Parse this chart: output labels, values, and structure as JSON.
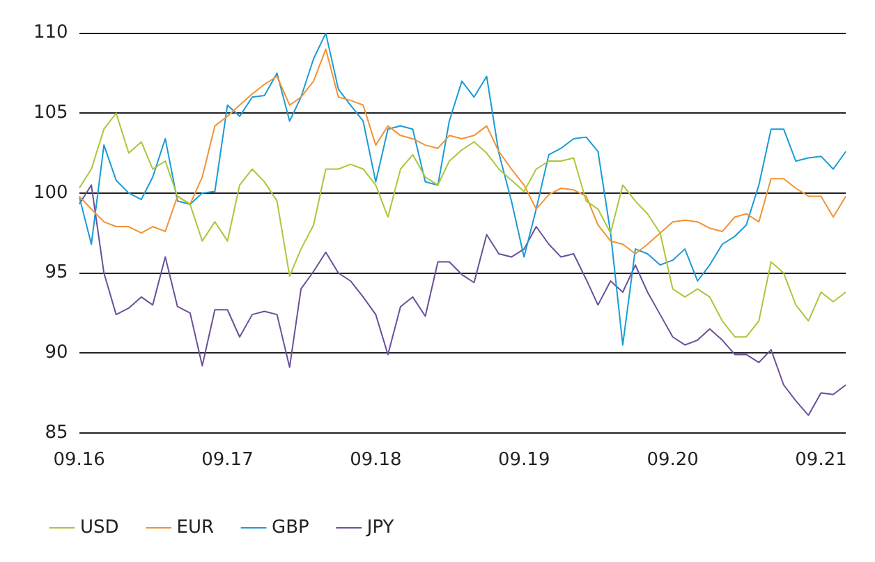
{
  "chart_data": {
    "type": "line",
    "x": [
      "2016-09",
      "2016-10",
      "2016-11",
      "2016-12",
      "2017-01",
      "2017-02",
      "2017-03",
      "2017-04",
      "2017-05",
      "2017-06",
      "2017-07",
      "2017-08",
      "2017-09",
      "2017-10",
      "2017-11",
      "2017-12",
      "2018-01",
      "2018-02",
      "2018-03",
      "2018-04",
      "2018-05",
      "2018-06",
      "2018-07",
      "2018-08",
      "2018-09",
      "2018-10",
      "2018-11",
      "2018-12",
      "2019-01",
      "2019-02",
      "2019-03",
      "2019-04",
      "2019-05",
      "2019-06",
      "2019-07",
      "2019-08",
      "2019-09",
      "2019-10",
      "2019-11",
      "2019-12",
      "2020-01",
      "2020-02",
      "2020-03",
      "2020-04",
      "2020-05",
      "2020-06",
      "2020-07",
      "2020-08",
      "2020-09",
      "2020-10",
      "2020-11",
      "2020-12",
      "2021-01",
      "2021-02",
      "2021-03",
      "2021-04",
      "2021-05",
      "2021-06",
      "2021-07",
      "2021-08",
      "2021-09",
      "2021-10",
      "2021-11"
    ],
    "series": [
      {
        "name": "USD",
        "color": "#a8c83a",
        "values": [
          100.3,
          101.5,
          104,
          105,
          102.5,
          103.2,
          101.5,
          102,
          99.8,
          99.3,
          97,
          98.2,
          97,
          100.5,
          101.5,
          100.7,
          99.5,
          94.8,
          96.5,
          98,
          101.5,
          101.5,
          101.8,
          101.5,
          100.5,
          98.5,
          101.5,
          102.4,
          101,
          100.5,
          102,
          102.7,
          103.2,
          102.5,
          101.5,
          100.8,
          100.1,
          101.5,
          102,
          102,
          102.2,
          99.5,
          99,
          97.5,
          100.5,
          99.5,
          98.7,
          97.5,
          94,
          93.5,
          94,
          93.5,
          92,
          91,
          91,
          92,
          95.7,
          95,
          93,
          92,
          93.8,
          93.2,
          93.8
        ]
      },
      {
        "name": "EUR",
        "color": "#f39232",
        "values": [
          99.8,
          99,
          98.2,
          97.9,
          97.9,
          97.5,
          97.9,
          97.6,
          99.8,
          99.3,
          101,
          104.2,
          104.8,
          105.5,
          106.2,
          106.8,
          107.3,
          105.5,
          106,
          107,
          109,
          106,
          105.8,
          105.5,
          103,
          104.2,
          103.6,
          103.4,
          103,
          102.8,
          103.6,
          103.4,
          103.6,
          104.2,
          102.6,
          101.5,
          100.5,
          99,
          99.9,
          100.3,
          100.2,
          99.8,
          98,
          97,
          96.8,
          96.2,
          96.8,
          97.5,
          98.2,
          98.3,
          98.2,
          97.8,
          97.6,
          98.5,
          98.7,
          98.2,
          100.9,
          100.9,
          100.3,
          99.8,
          99.8,
          98.5,
          99.8
        ]
      },
      {
        "name": "GBP",
        "color": "#1a9bd7",
        "values": [
          99.8,
          96.8,
          103,
          100.8,
          100,
          99.6,
          101,
          103.4,
          99.5,
          99.3,
          100,
          100.1,
          105.5,
          104.8,
          106,
          106.1,
          107.5,
          104.5,
          106,
          108.4,
          110,
          106.5,
          105.5,
          104.5,
          100.7,
          104,
          104.2,
          104,
          100.7,
          100.5,
          104.5,
          107,
          106,
          107.3,
          102.5,
          99.5,
          96,
          99,
          102.4,
          102.8,
          103.4,
          103.5,
          102.6,
          97.5,
          90.5,
          96.5,
          96.2,
          95.5,
          95.8,
          96.5,
          94.5,
          95.5,
          96.8,
          97.3,
          98,
          100.5,
          104,
          104,
          102,
          102.2,
          102.3,
          101.5,
          102.6
        ]
      },
      {
        "name": "JPY",
        "color": "#6b4f9b",
        "values": [
          99.3,
          100.5,
          95,
          92.4,
          92.8,
          93.5,
          93,
          96,
          92.9,
          92.5,
          89.2,
          92.7,
          92.7,
          91,
          92.4,
          92.6,
          92.4,
          89.1,
          94,
          95.1,
          96.3,
          95,
          94.5,
          93.5,
          92.4,
          89.9,
          92.9,
          93.5,
          92.3,
          95.7,
          95.7,
          94.9,
          94.4,
          97.4,
          96.2,
          96,
          96.5,
          97.9,
          96.8,
          96,
          96.2,
          94.6,
          93,
          94.5,
          93.8,
          95.5,
          93.8,
          92.4,
          91,
          90.5,
          90.8,
          91.5,
          90.8,
          89.9,
          89.9,
          89.4,
          90.2,
          88,
          87,
          86.1,
          87.5,
          87.4,
          88
        ]
      }
    ],
    "xlim": [
      "2016-09",
      "2021-11"
    ],
    "xticks": [
      {
        "value": "2016-09",
        "label": "09.16"
      },
      {
        "value": "2017-09",
        "label": "09.17"
      },
      {
        "value": "2018-09",
        "label": "09.18"
      },
      {
        "value": "2019-09",
        "label": "09.19"
      },
      {
        "value": "2020-09",
        "label": "09.20"
      },
      {
        "value": "2021-09",
        "label": "09.21"
      }
    ],
    "ylim": [
      85,
      110
    ],
    "yticks": [
      85,
      90,
      95,
      100,
      105,
      110
    ],
    "grid": "y",
    "legend": "bottom left",
    "marker": "none",
    "line_style": "solid"
  }
}
